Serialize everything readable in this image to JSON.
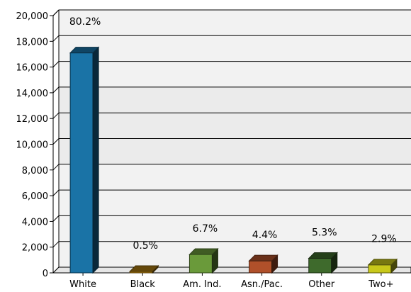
{
  "chart_data": {
    "type": "bar",
    "categories": [
      "White",
      "Black",
      "Am. Ind.",
      "Asn./Pac.",
      "Other",
      "Two+"
    ],
    "values": [
      17100,
      110,
      1430,
      930,
      1130,
      620
    ],
    "data_labels": [
      "80.2%",
      "0.5%",
      "6.7%",
      "4.4%",
      "5.3%",
      "2.9%"
    ],
    "colors": [
      "#1a73a6",
      "#a87810",
      "#6a9a3a",
      "#b0502a",
      "#3e6a2c",
      "#c8c81a"
    ],
    "ylim": [
      0,
      20000
    ],
    "yticks": [
      0,
      2000,
      4000,
      6000,
      8000,
      10000,
      12000,
      14000,
      16000,
      18000,
      20000
    ],
    "ytick_labels": [
      "0",
      "2,000",
      "4,000",
      "6,000",
      "8,000",
      "10,000",
      "12,000",
      "14,000",
      "16,000",
      "18,000",
      "20,000"
    ],
    "grid": true,
    "three_d": true,
    "title": "",
    "xlabel": "",
    "ylabel": ""
  }
}
